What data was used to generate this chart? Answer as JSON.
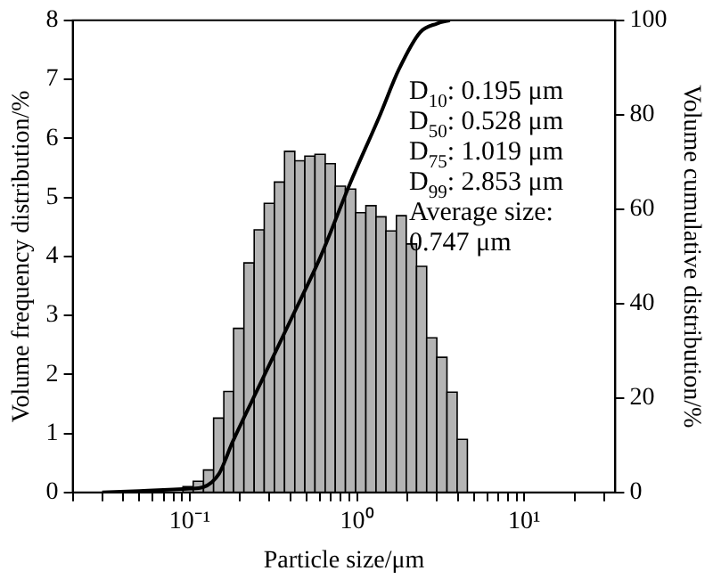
{
  "chart_data": {
    "type": "histogram",
    "xlabel": "Particle size/μm",
    "ylabel": "Volume frequency distribution/%",
    "y2label": "Volume cumulative distribution/%",
    "bins": [
      0.0912,
      0.105,
      0.121,
      0.139,
      0.16,
      0.183,
      0.211,
      0.243,
      0.279,
      0.321,
      0.369,
      0.425,
      0.488,
      0.561,
      0.646,
      0.742,
      0.853,
      0.982,
      1.13,
      1.3,
      1.49,
      1.72,
      1.97,
      2.27,
      2.61,
      3.0,
      3.45,
      3.97,
      4.57
    ],
    "values": [
      0.1,
      0.19,
      0.38,
      1.26,
      1.71,
      2.78,
      3.89,
      4.45,
      4.9,
      5.26,
      5.78,
      5.62,
      5.7,
      5.73,
      5.57,
      5.19,
      5.14,
      4.74,
      4.86,
      4.67,
      4.43,
      4.69,
      4.21,
      3.83,
      2.62,
      2.29,
      1.7,
      0.9
    ],
    "color": "#b4b4b4",
    "series": [
      {
        "type": "line",
        "axis": "y2",
        "color": "#000000",
        "x": [
          0.03,
          0.05,
          0.08,
          0.1,
          0.12,
          0.15,
          0.18,
          0.27,
          0.405,
          0.605,
          0.908,
          1.36,
          1.78,
          2.39,
          3.0,
          3.59
        ],
        "values": [
          0,
          0.3,
          0.6,
          0.8,
          1.1,
          4,
          10.6,
          23.7,
          36.8,
          49.9,
          65.4,
          79.6,
          89.6,
          97.5,
          99.3,
          100
        ]
      }
    ],
    "xlim": [
      0.02,
      35
    ],
    "xticks": [
      {
        "value": 0.02,
        "label": null
      },
      {
        "value": 0.03,
        "label": null
      },
      {
        "value": 0.04,
        "label": null
      },
      {
        "value": 0.05,
        "label": null
      },
      {
        "value": 0.06,
        "label": null
      },
      {
        "value": 0.07,
        "label": null
      },
      {
        "value": 0.08,
        "label": null
      },
      {
        "value": 0.09,
        "label": null
      },
      {
        "value": 0.1,
        "label": "10⁻¹"
      },
      {
        "value": 0.2,
        "label": null
      },
      {
        "value": 0.3,
        "label": null
      },
      {
        "value": 0.4,
        "label": null
      },
      {
        "value": 0.5,
        "label": null
      },
      {
        "value": 0.6,
        "label": null
      },
      {
        "value": 0.7,
        "label": null
      },
      {
        "value": 0.8,
        "label": null
      },
      {
        "value": 0.9,
        "label": null
      },
      {
        "value": 1,
        "label": "10⁰"
      },
      {
        "value": 2,
        "label": null
      },
      {
        "value": 3,
        "label": null
      },
      {
        "value": 4,
        "label": null
      },
      {
        "value": 5,
        "label": null
      },
      {
        "value": 6,
        "label": null
      },
      {
        "value": 7,
        "label": null
      },
      {
        "value": 8,
        "label": null
      },
      {
        "value": 9,
        "label": null
      },
      {
        "value": 10,
        "label": "10¹"
      },
      {
        "value": 20,
        "label": null
      },
      {
        "value": 30,
        "label": null
      }
    ],
    "ylim": [
      0,
      8
    ],
    "yticks": [
      0,
      1,
      2,
      3,
      4,
      5,
      6,
      7,
      8
    ],
    "y2lim": [
      0,
      100
    ],
    "y2ticks": [
      0,
      20,
      40,
      60,
      80,
      100
    ],
    "log": "x",
    "grid": false,
    "legend": false,
    "annotations": [
      "D$_{10}$: 0.195 μm",
      "D$_{50}$: 0.528 μm",
      "D$_{75}$: 1.019 μm",
      "D$_{99}$: 2.853 μm",
      "Average size:\n0.747 μm"
    ]
  }
}
